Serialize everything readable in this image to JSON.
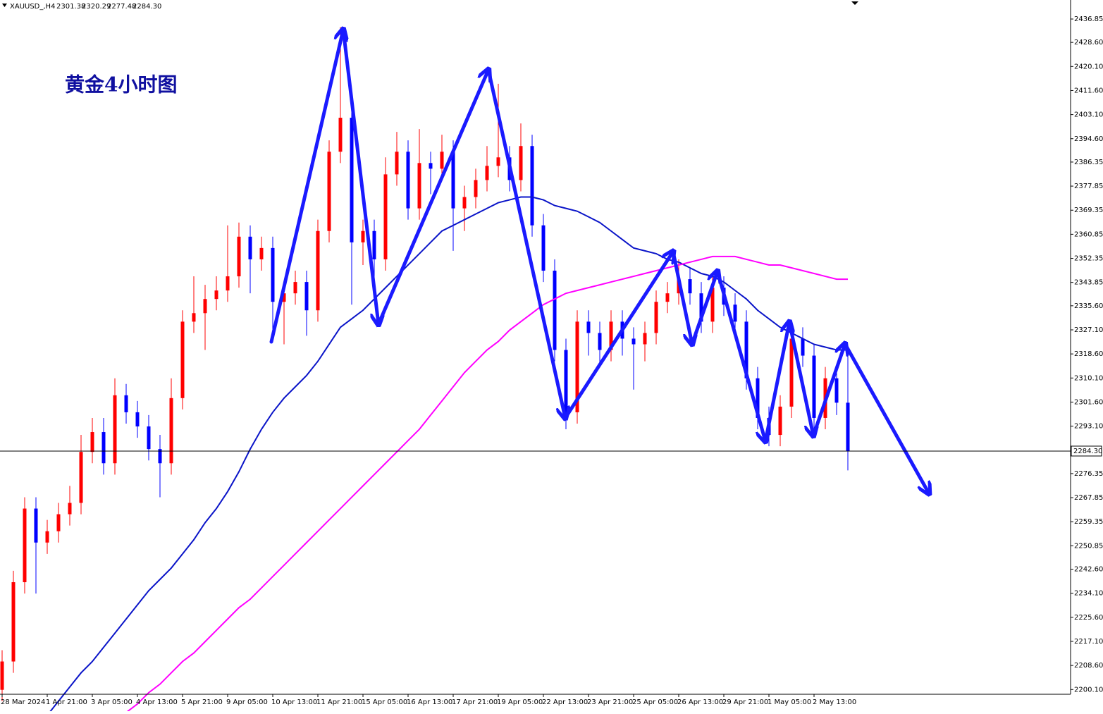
{
  "chart_data": {
    "type": "candlestick",
    "header": {
      "symbol": "XAUUSD_,H4",
      "ohlc": [
        "2301.38",
        "2320.29",
        "2277.48",
        "2284.30"
      ]
    },
    "title": "黄金4小时图",
    "candles": {
      "open": [
        2200,
        2210,
        2238,
        2264,
        2252,
        2256,
        2262,
        2266,
        2284,
        2291,
        2280,
        2304,
        2298,
        2293,
        2285,
        2280,
        2303,
        2330,
        2333,
        2338,
        2341,
        2346,
        2360,
        2352,
        2356,
        2337,
        2340,
        2344,
        2334,
        2362,
        2390,
        2402,
        2358,
        2362,
        2352,
        2382,
        2390,
        2370,
        2386,
        2384,
        2390,
        2370,
        2374,
        2380,
        2385,
        2388,
        2380,
        2392,
        2364,
        2348,
        2320,
        2298,
        2330,
        2326,
        2320,
        2330,
        2324,
        2322,
        2326,
        2337,
        2340,
        2345,
        2340,
        2330,
        2342,
        2336,
        2330,
        2310,
        2296,
        2290,
        2300,
        2324,
        2318,
        2296,
        2310,
        2301.38
      ],
      "high": [
        2214,
        2242,
        2268,
        2268,
        2260,
        2266,
        2272,
        2290,
        2296,
        2296,
        2310,
        2308,
        2302,
        2297,
        2290,
        2310,
        2334,
        2346,
        2343,
        2346,
        2364,
        2365,
        2364,
        2360,
        2360,
        2344,
        2348,
        2348,
        2366,
        2394,
        2434,
        2406,
        2366,
        2366,
        2388,
        2397,
        2394,
        2398,
        2390,
        2396,
        2394,
        2378,
        2384,
        2392,
        2414,
        2392,
        2400,
        2396,
        2368,
        2352,
        2324,
        2334,
        2334,
        2330,
        2334,
        2334,
        2328,
        2330,
        2341,
        2344,
        2352,
        2349,
        2344,
        2346,
        2346,
        2340,
        2334,
        2314,
        2300,
        2304,
        2328,
        2328,
        2322,
        2314,
        2314,
        2320.29
      ],
      "low": [
        2196,
        2206,
        2234,
        2234,
        2248,
        2252,
        2258,
        2262,
        2280,
        2276,
        2276,
        2294,
        2289,
        2281,
        2268,
        2276,
        2299,
        2326,
        2320,
        2334,
        2337,
        2342,
        2340,
        2348,
        2325,
        2322,
        2336,
        2325,
        2330,
        2358,
        2386,
        2336,
        2350,
        2340,
        2348,
        2378,
        2366,
        2366,
        2375,
        2380,
        2355,
        2362,
        2370,
        2376,
        2381,
        2376,
        2376,
        2360,
        2344,
        2316,
        2292,
        2294,
        2318,
        2314,
        2316,
        2318,
        2306,
        2316,
        2322,
        2333,
        2336,
        2336,
        2326,
        2326,
        2332,
        2326,
        2306,
        2292,
        2286,
        2286,
        2296,
        2314,
        2292,
        2292,
        2297,
        2277.48
      ],
      "close": [
        2210,
        2238,
        2264,
        2252,
        2256,
        2262,
        2266,
        2284,
        2291,
        2280,
        2304,
        2298,
        2293,
        2285,
        2280,
        2303,
        2330,
        2333,
        2338,
        2341,
        2346,
        2360,
        2352,
        2356,
        2337,
        2340,
        2344,
        2334,
        2362,
        2390,
        2402,
        2358,
        2362,
        2352,
        2382,
        2390,
        2370,
        2386,
        2384,
        2390,
        2370,
        2374,
        2380,
        2385,
        2388,
        2380,
        2392,
        2364,
        2348,
        2320,
        2298,
        2330,
        2326,
        2320,
        2330,
        2324,
        2322,
        2326,
        2337,
        2340,
        2345,
        2340,
        2330,
        2342,
        2336,
        2330,
        2310,
        2296,
        2290,
        2300,
        2324,
        2318,
        2296,
        2310,
        2301.38,
        2284.3
      ]
    },
    "up_color": "#ff0000",
    "down_color": "#0000ff",
    "series": [
      {
        "color": "#0a14c8",
        "values": [
          null,
          null,
          null,
          null,
          2191,
          2196,
          2201,
          2206,
          2210,
          2215,
          2220,
          2225,
          2230,
          2235,
          2239,
          2243,
          2248,
          2253,
          2259,
          2264,
          2270,
          2277,
          2285,
          2292,
          2298,
          2303,
          2307,
          2311,
          2316,
          2322,
          2328,
          2331,
          2334,
          2338,
          2342,
          2346,
          2350,
          2354,
          2358,
          2362,
          2364,
          2366,
          2368,
          2370,
          2372,
          2373,
          2374,
          2374,
          2373,
          2371,
          2370,
          2369,
          2367,
          2365,
          2362,
          2359,
          2356,
          2355,
          2354,
          2352,
          2351,
          2349,
          2347,
          2346,
          2344,
          2341,
          2338,
          2334,
          2331,
          2328,
          2326,
          2324,
          2322,
          2321,
          2320,
          2320
        ]
      },
      {
        "color": "#ff00ff",
        "values": [
          null,
          null,
          null,
          null,
          null,
          null,
          null,
          null,
          null,
          null,
          null,
          2192,
          2195,
          2199,
          2202,
          2206,
          2210,
          2213,
          2217,
          2221,
          2225,
          2229,
          2232,
          2236,
          2240,
          2244,
          2248,
          2252,
          2256,
          2260,
          2264,
          2268,
          2272,
          2276,
          2280,
          2284,
          2288,
          2292,
          2297,
          2302,
          2307,
          2312,
          2316,
          2320,
          2323,
          2327,
          2330,
          2333,
          2336,
          2338,
          2340,
          2341,
          2342,
          2343,
          2344,
          2345,
          2346,
          2347,
          2348,
          2349,
          2350,
          2351,
          2352,
          2353,
          2353,
          2353,
          2352,
          2351,
          2350,
          2350,
          2349,
          2348,
          2347,
          2346,
          2345,
          2345
        ]
      }
    ],
    "current_price": {
      "value": 2284.3,
      "label": "2284.30"
    },
    "xticks": [
      {
        "value": 0,
        "label": "28 Mar 2024"
      },
      {
        "value": 4,
        "label": "1 Apr 21:00"
      },
      {
        "value": 8,
        "label": "3 Apr 05:00"
      },
      {
        "value": 12,
        "label": "4 Apr 13:00"
      },
      {
        "value": 16,
        "label": "5 Apr 21:00"
      },
      {
        "value": 20,
        "label": "9 Apr 05:00"
      },
      {
        "value": 24,
        "label": "10 Apr 13:00"
      },
      {
        "value": 28,
        "label": "11 Apr 21:00"
      },
      {
        "value": 32,
        "label": "15 Apr 05:00"
      },
      {
        "value": 36,
        "label": "16 Apr 13:00"
      },
      {
        "value": 40,
        "label": "17 Apr 21:00"
      },
      {
        "value": 44,
        "label": "19 Apr 05:00"
      },
      {
        "value": 48,
        "label": "22 Apr 13:00"
      },
      {
        "value": 52,
        "label": "23 Apr 21:00"
      },
      {
        "value": 56,
        "label": "25 Apr 05:00"
      },
      {
        "value": 60,
        "label": "26 Apr 13:00"
      },
      {
        "value": 64,
        "label": "29 Apr 21:00"
      },
      {
        "value": 68,
        "label": "1 May 05:00"
      },
      {
        "value": 72,
        "label": "2 May 13:00"
      }
    ],
    "ylim": [
      2198.43,
      2443.57
    ],
    "yticks": [
      {
        "value": 2436.85,
        "label": "2436.85"
      },
      {
        "value": 2428.6,
        "label": "2428.60"
      },
      {
        "value": 2420.1,
        "label": "2420.10"
      },
      {
        "value": 2411.6,
        "label": "2411.60"
      },
      {
        "value": 2403.1,
        "label": "2403.10"
      },
      {
        "value": 2394.6,
        "label": "2394.60"
      },
      {
        "value": 2386.35,
        "label": "2386.35"
      },
      {
        "value": 2377.85,
        "label": "2377.85"
      },
      {
        "value": 2369.35,
        "label": "2369.35"
      },
      {
        "value": 2360.85,
        "label": "2360.85"
      },
      {
        "value": 2352.35,
        "label": "2352.35"
      },
      {
        "value": 2343.85,
        "label": "2343.85"
      },
      {
        "value": 2335.6,
        "label": "2335.60"
      },
      {
        "value": 2327.1,
        "label": "2327.10"
      },
      {
        "value": 2318.6,
        "label": "2318.60"
      },
      {
        "value": 2310.1,
        "label": "2310.10"
      },
      {
        "value": 2301.6,
        "label": "2301.60"
      },
      {
        "value": 2293.1,
        "label": "2293.10"
      },
      {
        "value": 2276.35,
        "label": "2276.35"
      },
      {
        "value": 2267.85,
        "label": "2267.85"
      },
      {
        "value": 2259.35,
        "label": "2259.35"
      },
      {
        "value": 2250.85,
        "label": "2250.85"
      },
      {
        "value": 2242.6,
        "label": "2242.60"
      },
      {
        "value": 2234.1,
        "label": "2234.10"
      },
      {
        "value": 2225.6,
        "label": "2225.60"
      },
      {
        "value": 2217.1,
        "label": "2217.10"
      },
      {
        "value": 2208.6,
        "label": "2208.60"
      },
      {
        "value": 2200.1,
        "label": "2200.10"
      }
    ]
  }
}
